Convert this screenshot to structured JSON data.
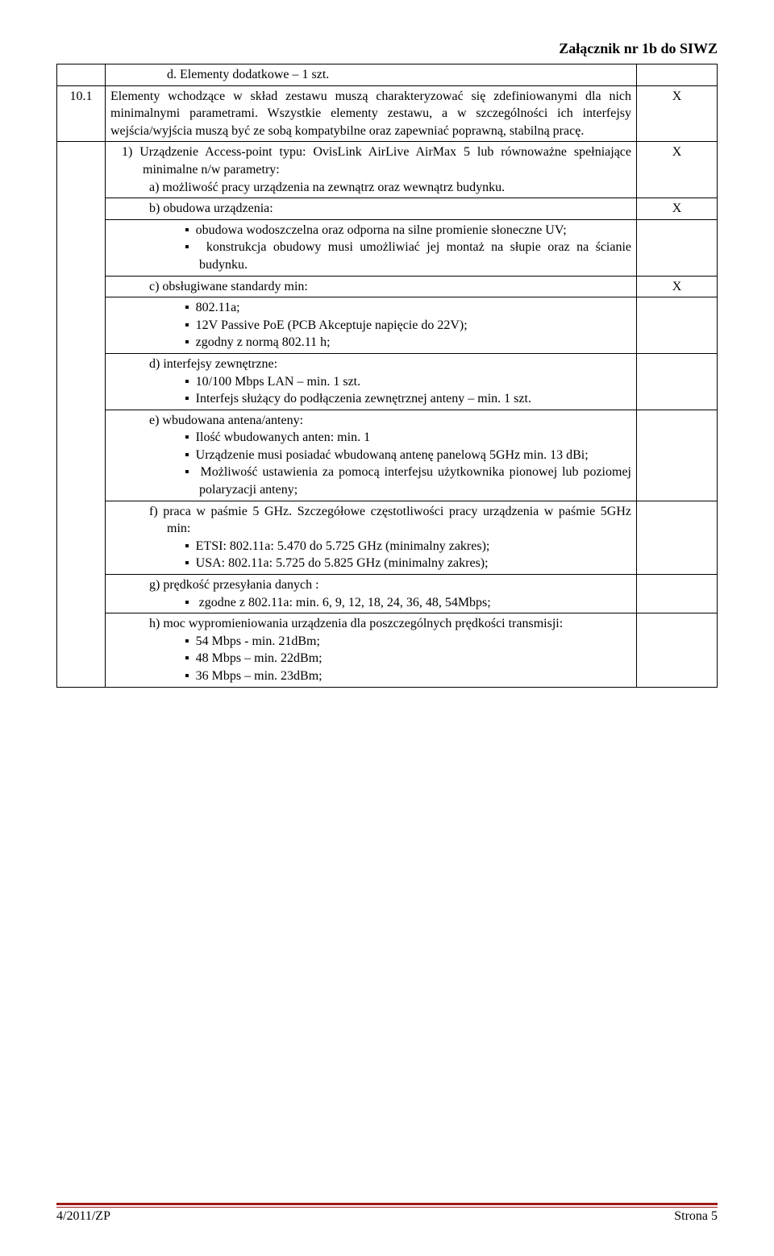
{
  "header": {
    "attachment": "Załącznik nr 1b do SIWZ"
  },
  "rows": {
    "r0": {
      "num": "",
      "text": "d.  Elementy dodatkowe – 1 szt.",
      "mark": ""
    },
    "r1": {
      "num": "10.1",
      "text": "Elementy wchodzące w skład zestawu muszą charakteryzować się zdefiniowanymi dla nich minimalnymi parametrami. Wszystkie elementy zestawu, a w szczególności ich interfejsy wejścia/wyjścia muszą być ze sobą kompatybilne oraz zapewniać poprawną, stabilną pracę.",
      "mark": "X"
    },
    "r2": {
      "l1": "1)  Urządzenie Access-point typu: OvisLink AirLive AirMax 5 lub równoważne spełniające minimalne n/w parametry:",
      "l2": "a)  możliwość pracy urządzenia na zewnątrz oraz wewnątrz budynku.",
      "mark": "X"
    },
    "r3": {
      "text": "b)  obudowa urządzenia:",
      "mark": "X"
    },
    "r4": {
      "b1": "obudowa wodoszczelna oraz odporna na silne promienie słoneczne UV;",
      "b2": "konstrukcja obudowy musi umożliwiać jej montaż na słupie oraz na ścianie budynku."
    },
    "r5": {
      "text": "c)  obsługiwane standardy min:",
      "mark": "X"
    },
    "r6": {
      "b1": "802.11a;",
      "b2": "12V Passive PoE (PCB Akceptuje napięcie do 22V);",
      "b3": "zgodny z normą 802.11 h;"
    },
    "r7": {
      "head": "d)  interfejsy zewnętrzne:",
      "b1": "10/100 Mbps LAN – min. 1 szt.",
      "b2": "Interfejs służący do podłączenia zewnętrznej anteny – min. 1 szt."
    },
    "r8": {
      "head": "e)  wbudowana antena/anteny:",
      "b1": "Ilość wbudowanych anten: min. 1",
      "b2": "Urządzenie musi posiadać wbudowaną antenę panelową 5GHz min. 13 dBi;",
      "b3": "Możliwość ustawienia za pomocą interfejsu użytkownika pionowej lub poziomej polaryzacji anteny;"
    },
    "r9": {
      "head": "f)  praca w paśmie 5 GHz. Szczegółowe częstotliwości pracy urządzenia w paśmie 5GHz min:",
      "b1": "ETSI: 802.11a: 5.470 do 5.725 GHz (minimalny zakres);",
      "b2": "USA: 802.11a: 5.725 do 5.825 GHz (minimalny zakres);"
    },
    "r10": {
      "head": "g)  prędkość przesyłania danych :",
      "b1": " zgodne z 802.11a: min. 6, 9, 12, 18, 24, 36, 48, 54Mbps;"
    },
    "r11": {
      "head": "h)  moc wypromieniowania urządzenia dla poszczególnych prędkości transmisji:",
      "b1": "54 Mbps -  min. 21dBm;",
      "b2": "48 Mbps – min. 22dBm;",
      "b3": "36 Mbps – min. 23dBm;"
    }
  },
  "footer": {
    "left": "4/2011/ZP",
    "right": "Strona 5"
  },
  "colors": {
    "rule": "#a01818"
  }
}
